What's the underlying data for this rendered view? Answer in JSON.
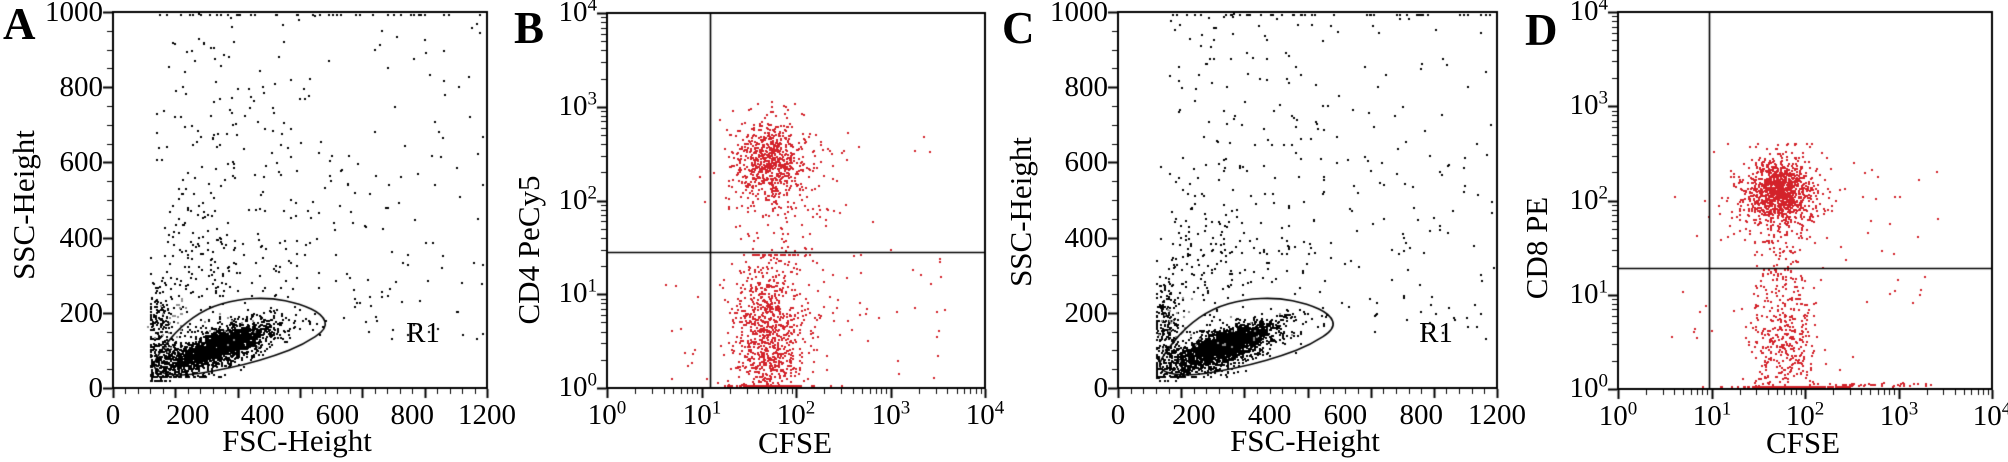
{
  "figure": {
    "background": "#ffffff",
    "colors": {
      "axis": "#000000",
      "dot_black": "#000000",
      "dot_gray": "#8f8f8f",
      "dot_red": "#d3222a"
    }
  },
  "chart_data": [
    {
      "id": "A",
      "panel_letter": "A",
      "type": "scatter",
      "scale": "linear",
      "x_label": "FSC-Height",
      "y_label": "SSC-Height",
      "x_range": [
        0,
        1200
      ],
      "y_range": [
        0,
        1000
      ],
      "x_major_ticks": [
        0,
        200,
        400,
        600,
        800,
        1000,
        1200
      ],
      "x_tick_labels": [
        "0",
        "200",
        "400",
        "600",
        "800",
        "1200"
      ],
      "y_major_ticks": [
        0,
        200,
        400,
        600,
        800,
        1000
      ],
      "y_tick_labels": [
        "0",
        "200",
        "400",
        "600",
        "800",
        "1000"
      ],
      "x_minor_step": 40,
      "y_minor_step": 50,
      "dot_color": "dot_black",
      "gate": {
        "label": "R1",
        "points": [
          [
            125,
            57
          ],
          [
            158,
            38
          ],
          [
            230,
            33
          ],
          [
            320,
            44
          ],
          [
            420,
            62
          ],
          [
            520,
            86
          ],
          [
            610,
            115
          ],
          [
            688,
            158
          ],
          [
            672,
            196
          ],
          [
            600,
            224
          ],
          [
            505,
            240
          ],
          [
            400,
            236
          ],
          [
            300,
            212
          ],
          [
            215,
            162
          ],
          [
            152,
            98
          ]
        ]
      },
      "seed": 7,
      "clusters": [
        {
          "kind": "gauss",
          "n": 1500,
          "cx": 330,
          "cy": 103,
          "sx": 105,
          "sy": 26,
          "slope": 0.28,
          "clamp_x": [
            124,
            1195
          ],
          "clamp_y": [
            30,
            990
          ]
        },
        {
          "kind": "gauss",
          "n": 950,
          "cx": 345,
          "cy": 116,
          "sx": 62,
          "sy": 16,
          "slope": 0.28,
          "clamp_x": [
            130,
            1195
          ],
          "clamp_y": [
            40,
            990
          ]
        },
        {
          "kind": "gauss",
          "n": 240,
          "cx": 152,
          "cy": 140,
          "sx": 22,
          "sy": 72,
          "clamp_x": [
            122,
            1195
          ],
          "clamp_y": [
            18,
            990
          ]
        },
        {
          "kind": "gauss",
          "n": 120,
          "cx": 270,
          "cy": 330,
          "sx": 75,
          "sy": 130,
          "clamp_x": [
            122,
            1195
          ],
          "clamp_y": [
            150,
            990
          ]
        },
        {
          "kind": "uniform",
          "n": 80,
          "xmin": 150,
          "xmax": 700,
          "ymin": 380,
          "ymax": 1000
        },
        {
          "kind": "gauss",
          "n": 60,
          "cx": 430,
          "cy": 650,
          "sx": 160,
          "sy": 180,
          "clamp_x": [
            140,
            1190
          ],
          "clamp_y": [
            60,
            1000
          ]
        },
        {
          "kind": "uniform",
          "n": 90,
          "xmin": 620,
          "xmax": 1190,
          "ymin": 130,
          "ymax": 620
        },
        {
          "kind": "uniform",
          "n": 25,
          "xmin": 800,
          "xmax": 1190,
          "ymin": 600,
          "ymax": 1000
        },
        {
          "kind": "uniform",
          "n": 70,
          "xmin": 130,
          "xmax": 620,
          "ymin": 240,
          "ymax": 400
        },
        {
          "kind": "edge",
          "n": 45,
          "xmin": 170,
          "xmax": 1190,
          "y": 992
        },
        {
          "kind": "gauss",
          "n": 26,
          "cx": 185,
          "cy": 175,
          "sx": 30,
          "sy": 35,
          "color": "dot_gray"
        },
        {
          "kind": "gauss",
          "n": 14,
          "cx": 380,
          "cy": 150,
          "sx": 80,
          "sy": 30,
          "color": "dot_gray"
        }
      ]
    },
    {
      "id": "B",
      "panel_letter": "B",
      "type": "scatter",
      "scale": "log",
      "x_label": "CFSE",
      "y_label": "CD4 PeCy5",
      "x_exponents": [
        0,
        1,
        2,
        3,
        4
      ],
      "y_exponents": [
        0,
        1,
        2,
        3,
        4
      ],
      "log_base_label": "10",
      "quadrant": {
        "x": 1.09,
        "y": 1.45
      },
      "dot_color": "dot_red",
      "seed": 21,
      "clusters": [
        {
          "kind": "gauss",
          "n": 620,
          "cx": 1.72,
          "cy": 2.42,
          "sx": 0.185,
          "sy": 0.21,
          "clamp_x": [
            0.1,
            3.9
          ],
          "clamp_y": [
            1.5,
            3.05
          ]
        },
        {
          "kind": "gauss",
          "n": 170,
          "cx": 1.8,
          "cy": 2.25,
          "sx": 0.33,
          "sy": 0.37,
          "clamp_x": [
            0.6,
            3.2
          ],
          "clamp_y": [
            1.15,
            3.0
          ]
        },
        {
          "kind": "gauss",
          "n": 820,
          "cx": 1.7,
          "cy": 0.55,
          "sx": 0.17,
          "sy": 0.45,
          "clamp_x": [
            0.9,
            3.0
          ],
          "clamp_y": [
            0.02,
            1.42
          ]
        },
        {
          "kind": "gauss",
          "n": 170,
          "cx": 1.86,
          "cy": 0.75,
          "sx": 0.34,
          "sy": 0.5,
          "clamp_x": [
            0.5,
            3.4
          ],
          "clamp_y": [
            0.02,
            1.42
          ]
        },
        {
          "kind": "uniform",
          "n": 24,
          "xmin": 1.4,
          "xmax": 2.35,
          "ymin": 1.45,
          "ymax": 1.95
        },
        {
          "kind": "uniform",
          "n": 26,
          "xmin": 2.35,
          "xmax": 3.65,
          "ymin": 0.05,
          "ymax": 1.5
        },
        {
          "kind": "uniform",
          "n": 8,
          "xmin": 2.3,
          "xmax": 3.6,
          "ymin": 1.9,
          "ymax": 2.7
        },
        {
          "kind": "uniform",
          "n": 12,
          "xmin": 0.55,
          "xmax": 1.07,
          "ymin": 0.05,
          "ymax": 1.3
        },
        {
          "kind": "edge",
          "n": 80,
          "cx": 1.75,
          "sx": 0.22,
          "y": 0.02
        }
      ]
    },
    {
      "id": "C",
      "panel_letter": "C",
      "type": "scatter",
      "scale": "linear",
      "x_label": "FSC-Height",
      "y_label": "SSC-Height",
      "x_range": [
        0,
        1200
      ],
      "y_range": [
        0,
        1000
      ],
      "x_major_ticks": [
        0,
        200,
        400,
        600,
        800,
        1000,
        1200
      ],
      "x_tick_labels": [
        "0",
        "200",
        "400",
        "600",
        "800",
        "1200"
      ],
      "y_major_ticks": [
        0,
        200,
        400,
        600,
        800,
        1000
      ],
      "y_tick_labels": [
        "0",
        "200",
        "400",
        "600",
        "800",
        "1000"
      ],
      "x_minor_step": 40,
      "y_minor_step": 50,
      "dot_color": "dot_black",
      "gate": {
        "label": "R1",
        "points": [
          [
            125,
            57
          ],
          [
            158,
            38
          ],
          [
            230,
            33
          ],
          [
            320,
            44
          ],
          [
            420,
            62
          ],
          [
            520,
            86
          ],
          [
            610,
            115
          ],
          [
            688,
            158
          ],
          [
            672,
            196
          ],
          [
            600,
            224
          ],
          [
            505,
            240
          ],
          [
            400,
            236
          ],
          [
            300,
            212
          ],
          [
            215,
            162
          ],
          [
            152,
            98
          ]
        ]
      },
      "seed": 99,
      "clusters": [
        {
          "kind": "gauss",
          "n": 1500,
          "cx": 325,
          "cy": 103,
          "sx": 105,
          "sy": 26,
          "slope": 0.28,
          "clamp_x": [
            124,
            1195
          ],
          "clamp_y": [
            30,
            990
          ]
        },
        {
          "kind": "gauss",
          "n": 950,
          "cx": 340,
          "cy": 116,
          "sx": 62,
          "sy": 16,
          "slope": 0.28,
          "clamp_x": [
            130,
            1195
          ],
          "clamp_y": [
            40,
            990
          ]
        },
        {
          "kind": "gauss",
          "n": 240,
          "cx": 152,
          "cy": 140,
          "sx": 22,
          "sy": 72,
          "clamp_x": [
            122,
            1195
          ],
          "clamp_y": [
            18,
            990
          ]
        },
        {
          "kind": "gauss",
          "n": 120,
          "cx": 270,
          "cy": 330,
          "sx": 75,
          "sy": 130,
          "clamp_x": [
            122,
            1195
          ],
          "clamp_y": [
            150,
            990
          ]
        },
        {
          "kind": "uniform",
          "n": 80,
          "xmin": 150,
          "xmax": 700,
          "ymin": 380,
          "ymax": 1000
        },
        {
          "kind": "gauss",
          "n": 60,
          "cx": 430,
          "cy": 650,
          "sx": 160,
          "sy": 180,
          "clamp_x": [
            140,
            1190
          ],
          "clamp_y": [
            60,
            1000
          ]
        },
        {
          "kind": "uniform",
          "n": 90,
          "xmin": 620,
          "xmax": 1190,
          "ymin": 130,
          "ymax": 620
        },
        {
          "kind": "uniform",
          "n": 25,
          "xmin": 800,
          "xmax": 1190,
          "ymin": 600,
          "ymax": 1000
        },
        {
          "kind": "uniform",
          "n": 70,
          "xmin": 130,
          "xmax": 620,
          "ymin": 240,
          "ymax": 400
        },
        {
          "kind": "edge",
          "n": 45,
          "xmin": 170,
          "xmax": 1190,
          "y": 992
        },
        {
          "kind": "gauss",
          "n": 26,
          "cx": 185,
          "cy": 175,
          "sx": 30,
          "sy": 35,
          "color": "dot_gray"
        },
        {
          "kind": "gauss",
          "n": 14,
          "cx": 380,
          "cy": 150,
          "sx": 80,
          "sy": 30,
          "color": "dot_gray"
        }
      ]
    },
    {
      "id": "D",
      "panel_letter": "D",
      "type": "scatter",
      "scale": "log",
      "x_label": "CFSE",
      "y_label": "CD8 PE",
      "x_exponents": [
        0,
        1,
        2,
        3,
        4
      ],
      "y_exponents": [
        0,
        1,
        2,
        3,
        4
      ],
      "log_base_label": "10",
      "quadrant": {
        "x": 0.97,
        "y": 1.28
      },
      "dot_color": "dot_red",
      "seed": 55,
      "clusters": [
        {
          "kind": "gauss",
          "n": 950,
          "cx": 1.72,
          "cy": 2.1,
          "sx": 0.17,
          "sy": 0.15,
          "clamp_x": [
            1.05,
            3.2
          ],
          "clamp_y": [
            1.35,
            2.62
          ]
        },
        {
          "kind": "gauss",
          "n": 280,
          "cx": 1.74,
          "cy": 2.0,
          "sx": 0.28,
          "sy": 0.29,
          "clamp_x": [
            0.95,
            3.3
          ],
          "clamp_y": [
            1.3,
            2.6
          ]
        },
        {
          "kind": "gauss",
          "n": 70,
          "cx": 1.8,
          "cy": 1.45,
          "sx": 0.16,
          "sy": 0.28,
          "clamp_x": [
            1.1,
            2.6
          ],
          "clamp_y": [
            0.9,
            1.9
          ]
        },
        {
          "kind": "gauss",
          "n": 430,
          "cx": 1.76,
          "cy": 0.5,
          "sx": 0.19,
          "sy": 0.4,
          "clamp_x": [
            1.05,
            3.0
          ],
          "clamp_y": [
            0.02,
            1.26
          ]
        },
        {
          "kind": "edge",
          "n": 200,
          "cx": 1.85,
          "sx": 0.3,
          "y": 0.02
        },
        {
          "kind": "uniform",
          "n": 40,
          "xmin": 2.2,
          "xmax": 3.35,
          "ymin": 0.02,
          "ymax": 0.06
        },
        {
          "kind": "uniform",
          "n": 22,
          "xmin": 2.4,
          "xmax": 3.55,
          "ymin": 0.9,
          "ymax": 2.4
        },
        {
          "kind": "uniform",
          "n": 8,
          "xmin": 0.55,
          "xmax": 1.02,
          "ymin": 0.02,
          "ymax": 1.2
        },
        {
          "kind": "uniform",
          "n": 4,
          "xmin": 0.5,
          "xmax": 1.0,
          "ymin": 1.5,
          "ymax": 2.1
        }
      ]
    }
  ]
}
